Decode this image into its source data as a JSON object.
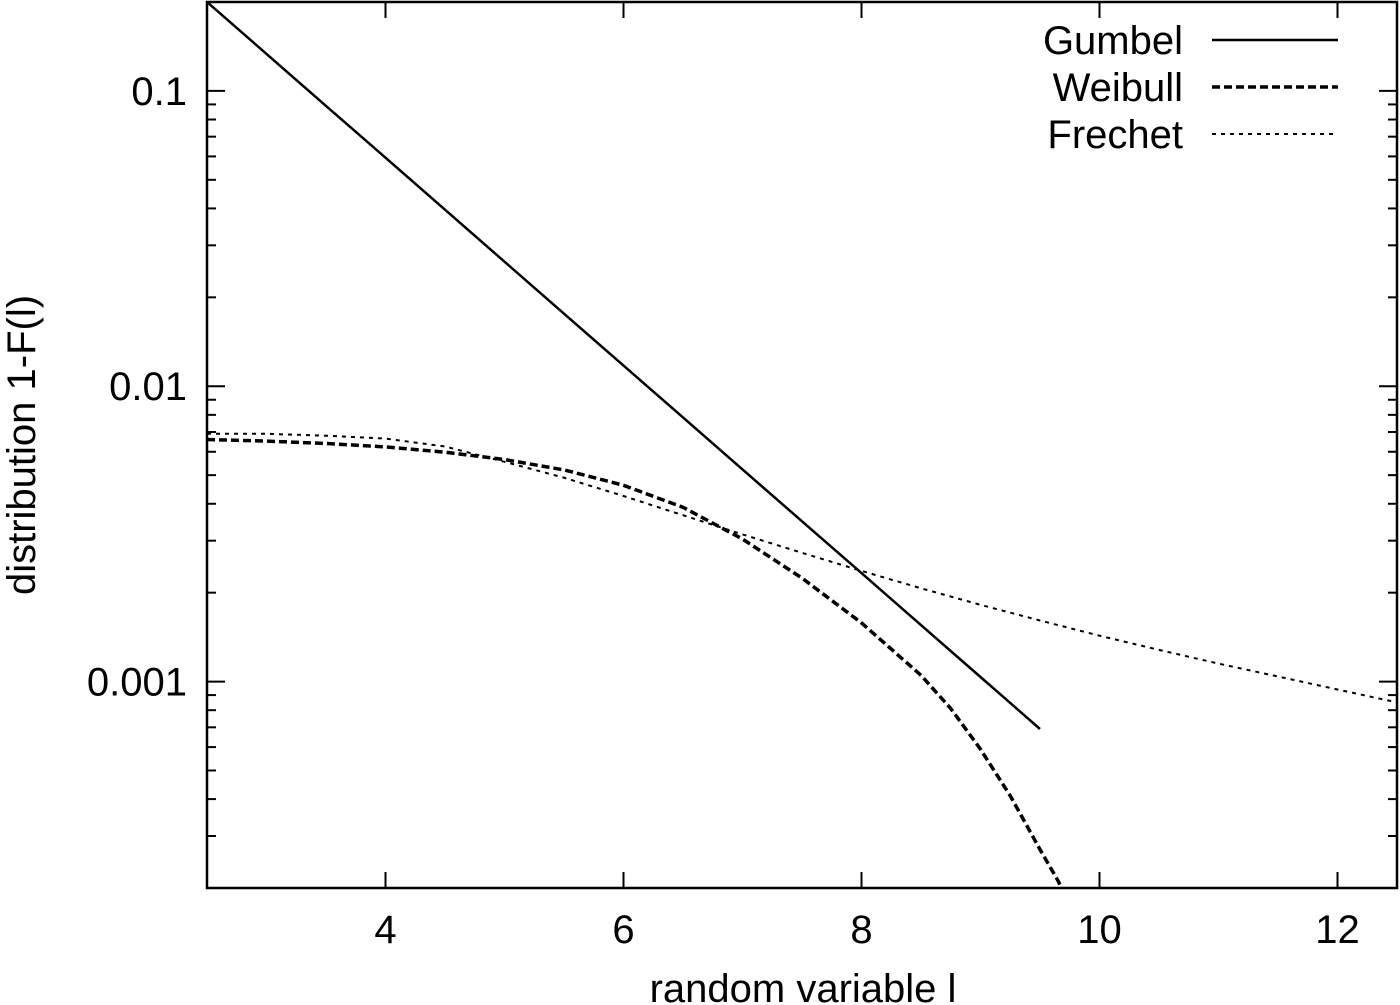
{
  "chart_data": {
    "type": "line",
    "xlabel": "random variable l",
    "ylabel": "distribution 1-F(l)",
    "xlim": [
      2.5,
      12.5
    ],
    "ylim": [
      0.0002,
      0.2
    ],
    "yscale": "log",
    "grid": false,
    "legend_position": "top-right",
    "x_ticks": [
      4,
      6,
      8,
      10,
      12
    ],
    "x_tick_labels": [
      "4",
      "6",
      "8",
      "10",
      "12"
    ],
    "y_ticks": [
      0.1,
      0.01,
      0.001
    ],
    "y_tick_labels": [
      "0.1",
      "0.01",
      "0.001"
    ],
    "series": [
      {
        "name": "Gumbel",
        "style": "solid",
        "x": [
          2.5,
          3.0,
          3.5,
          4.0,
          4.5,
          5.0,
          5.5,
          6.0,
          6.5,
          7.0,
          7.5,
          8.0,
          8.5,
          9.0,
          9.5
        ],
        "y": [
          0.2,
          0.1334,
          0.089,
          0.0594,
          0.0396,
          0.0264,
          0.0176,
          0.01175,
          0.00784,
          0.00523,
          0.00349,
          0.00233,
          0.001553,
          0.001036,
          0.000691
        ]
      },
      {
        "name": "Weibull",
        "style": "dashed",
        "x": [
          2.5,
          3.0,
          3.5,
          4.0,
          4.5,
          5.0,
          5.5,
          6.0,
          6.5,
          7.0,
          7.5,
          8.0,
          8.5,
          8.75,
          9.0,
          9.25,
          9.5,
          9.65,
          9.75
        ],
        "y": [
          0.0066,
          0.00652,
          0.0064,
          0.00623,
          0.00598,
          0.00565,
          0.00521,
          0.00462,
          0.00389,
          0.00304,
          0.00224,
          0.00158,
          0.00105,
          0.00081,
          0.00059,
          0.00041,
          0.00027,
          0.000212,
          0.000175
        ]
      },
      {
        "name": "Frechet",
        "style": "dotted",
        "x": [
          2.5,
          3.0,
          3.5,
          4.0,
          4.5,
          5.0,
          5.5,
          6.0,
          6.5,
          7.0,
          7.5,
          8.0,
          8.5,
          9.0,
          9.5,
          10.0,
          10.5,
          11.0,
          11.5,
          12.0,
          12.5
        ],
        "y": [
          0.0069,
          0.0069,
          0.0068,
          0.00665,
          0.00625,
          0.00555,
          0.0049,
          0.00425,
          0.00366,
          0.00315,
          0.00273,
          0.00237,
          0.00207,
          0.00182,
          0.00161,
          0.00143,
          0.00128,
          0.00115,
          0.00104,
          0.00094,
          0.00085
        ]
      }
    ]
  }
}
